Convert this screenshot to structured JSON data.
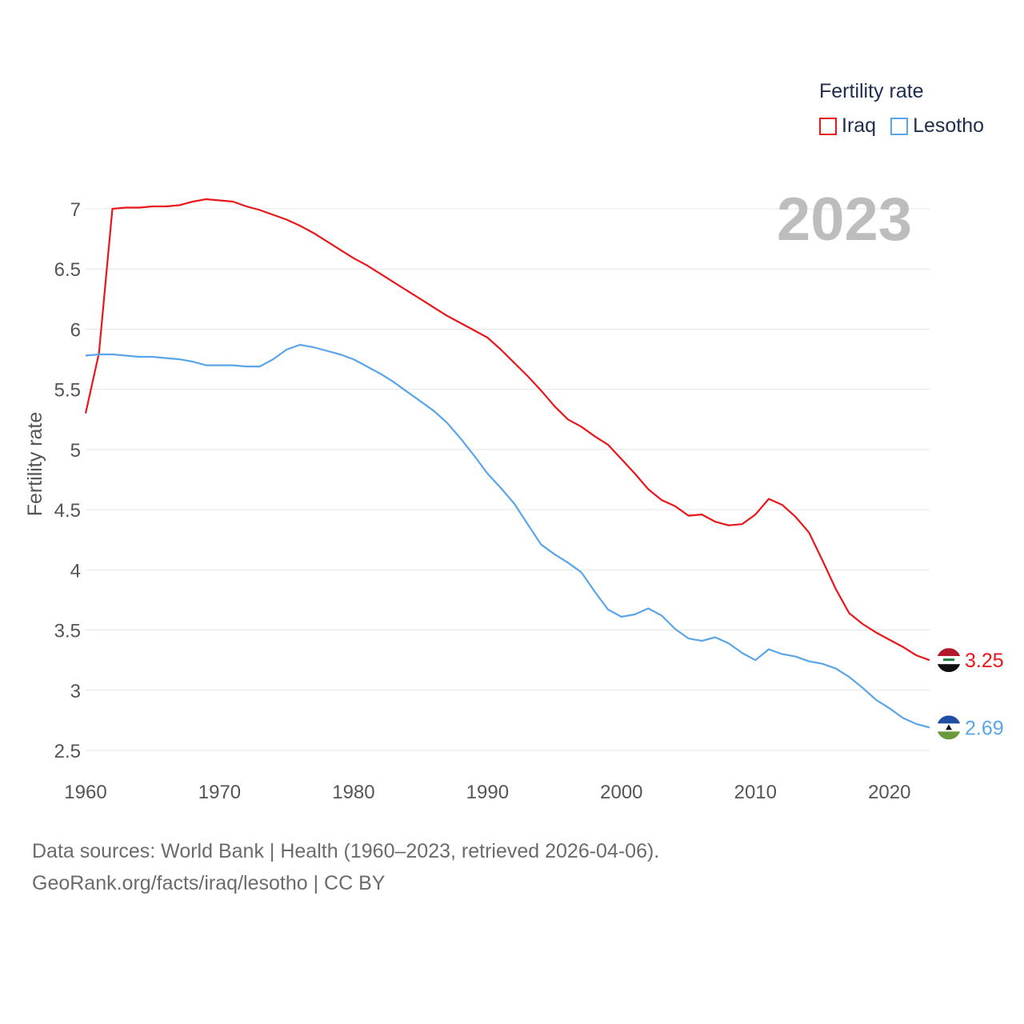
{
  "legend": {
    "title": "Fertility rate",
    "series": [
      {
        "name": "Iraq",
        "color": "#e8171b"
      },
      {
        "name": "Lesotho",
        "color": "#5aa5e8"
      }
    ]
  },
  "year_label": "2023",
  "source": {
    "line1": "Data sources: World Bank | Health (1960–2023, retrieved 2026-04-06).",
    "line2": "GeoRank.org/facts/iraq/lesotho | CC BY"
  },
  "chart_data": {
    "type": "line",
    "title": "",
    "xlabel": "",
    "ylabel": "Fertility rate",
    "xlim": [
      1960,
      2023
    ],
    "ylim": [
      2.5,
      7
    ],
    "x_ticks": [
      "1960",
      "1970",
      "1980",
      "1990",
      "2000",
      "2010",
      "2020"
    ],
    "y_ticks": [
      "2.5",
      "3",
      "3.5",
      "4",
      "4.5",
      "5",
      "5.5",
      "6",
      "6.5",
      "7"
    ],
    "end_labels": [
      "3.25",
      "2.69"
    ],
    "x": [
      1960,
      1961,
      1962,
      1963,
      1964,
      1965,
      1966,
      1967,
      1968,
      1969,
      1970,
      1971,
      1972,
      1973,
      1974,
      1975,
      1976,
      1977,
      1978,
      1979,
      1980,
      1981,
      1982,
      1983,
      1984,
      1985,
      1986,
      1987,
      1988,
      1989,
      1990,
      1991,
      1992,
      1993,
      1994,
      1995,
      1996,
      1997,
      1998,
      1999,
      2000,
      2001,
      2002,
      2003,
      2004,
      2005,
      2006,
      2007,
      2008,
      2009,
      2010,
      2011,
      2012,
      2013,
      2014,
      2015,
      2016,
      2017,
      2018,
      2019,
      2020,
      2021,
      2022,
      2023
    ],
    "series": [
      {
        "name": "Iraq",
        "color": "#e8171b",
        "values": [
          5.3,
          5.8,
          7.0,
          7.01,
          7.01,
          7.02,
          7.02,
          7.03,
          7.06,
          7.08,
          7.07,
          7.06,
          7.02,
          6.99,
          6.95,
          6.91,
          6.86,
          6.8,
          6.73,
          6.66,
          6.59,
          6.53,
          6.46,
          6.39,
          6.32,
          6.25,
          6.18,
          6.11,
          6.05,
          5.99,
          5.93,
          5.83,
          5.72,
          5.61,
          5.49,
          5.36,
          5.25,
          5.19,
          5.11,
          5.04,
          4.92,
          4.8,
          4.67,
          4.58,
          4.53,
          4.45,
          4.46,
          4.4,
          4.37,
          4.38,
          4.46,
          4.59,
          4.54,
          4.44,
          4.31,
          4.08,
          3.84,
          3.64,
          3.55,
          3.48,
          3.42,
          3.36,
          3.29,
          3.25
        ]
      },
      {
        "name": "Lesotho",
        "color": "#5aa5e8",
        "values": [
          5.78,
          5.79,
          5.79,
          5.78,
          5.77,
          5.77,
          5.76,
          5.75,
          5.73,
          5.7,
          5.7,
          5.7,
          5.69,
          5.69,
          5.75,
          5.83,
          5.87,
          5.85,
          5.82,
          5.79,
          5.75,
          5.69,
          5.63,
          5.56,
          5.48,
          5.4,
          5.32,
          5.22,
          5.09,
          4.95,
          4.8,
          4.68,
          4.55,
          4.38,
          4.21,
          4.13,
          4.06,
          3.98,
          3.82,
          3.67,
          3.61,
          3.63,
          3.68,
          3.62,
          3.51,
          3.43,
          3.41,
          3.44,
          3.39,
          3.31,
          3.25,
          3.34,
          3.3,
          3.28,
          3.24,
          3.22,
          3.18,
          3.11,
          3.02,
          2.92,
          2.85,
          2.77,
          2.72,
          2.69
        ]
      }
    ]
  }
}
